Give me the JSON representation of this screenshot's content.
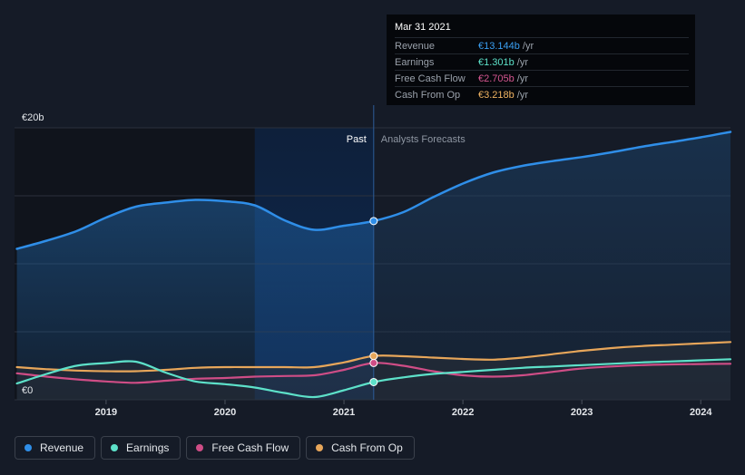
{
  "chart_data": {
    "type": "line",
    "currency_unit": "€",
    "y_axis_labels": [
      "€0",
      "€20b"
    ],
    "ylim": [
      0,
      20
    ],
    "x_ticks": [
      "2019",
      "2020",
      "2021",
      "2022",
      "2023",
      "2024"
    ],
    "x_tick_values": [
      2019,
      2020,
      2021,
      2022,
      2023,
      2024
    ],
    "xlim": [
      2018.23,
      2024.25
    ],
    "past_label": "Past",
    "forecast_label": "Analysts Forecasts",
    "split_x": 2021.25,
    "highlight_range": [
      2020.25,
      2021.25
    ],
    "series": [
      {
        "name": "Revenue",
        "color": "#2f8ee8",
        "fill": true,
        "x": [
          2018.25,
          2018.5,
          2018.75,
          2019.0,
          2019.25,
          2019.5,
          2019.75,
          2020.0,
          2020.25,
          2020.5,
          2020.75,
          2021.0,
          2021.25,
          2021.5,
          2021.75,
          2022.0,
          2022.25,
          2022.5,
          2022.75,
          2023.0,
          2023.25,
          2023.5,
          2023.75,
          2024.0,
          2024.25
        ],
        "y": [
          11.1,
          11.7,
          12.4,
          13.4,
          14.2,
          14.5,
          14.7,
          14.6,
          14.3,
          13.2,
          12.5,
          12.8,
          13.144,
          13.8,
          14.9,
          15.9,
          16.7,
          17.2,
          17.55,
          17.85,
          18.2,
          18.6,
          18.95,
          19.3,
          19.7
        ]
      },
      {
        "name": "Earnings",
        "color": "#5de1c9",
        "x": [
          2018.25,
          2018.5,
          2018.75,
          2019.0,
          2019.25,
          2019.5,
          2019.75,
          2020.0,
          2020.25,
          2020.5,
          2020.75,
          2021.0,
          2021.25,
          2021.5,
          2021.75,
          2022.0,
          2022.25,
          2022.5,
          2022.75,
          2023.0,
          2023.25,
          2023.5,
          2023.75,
          2024.0,
          2024.25
        ],
        "y": [
          1.2,
          1.9,
          2.5,
          2.7,
          2.8,
          2.0,
          1.35,
          1.15,
          0.9,
          0.5,
          0.2,
          0.7,
          1.301,
          1.65,
          1.9,
          2.05,
          2.2,
          2.35,
          2.45,
          2.55,
          2.65,
          2.75,
          2.82,
          2.9,
          2.98
        ]
      },
      {
        "name": "Free Cash Flow",
        "color": "#cf4d86",
        "x": [
          2018.25,
          2018.5,
          2018.75,
          2019.0,
          2019.25,
          2019.5,
          2019.75,
          2020.0,
          2020.25,
          2020.5,
          2020.75,
          2021.0,
          2021.25,
          2021.5,
          2021.75,
          2022.0,
          2022.25,
          2022.5,
          2022.75,
          2023.0,
          2023.25,
          2023.5,
          2023.75,
          2024.0,
          2024.25
        ],
        "y": [
          1.95,
          1.7,
          1.5,
          1.35,
          1.25,
          1.4,
          1.55,
          1.6,
          1.7,
          1.75,
          1.8,
          2.2,
          2.705,
          2.5,
          2.1,
          1.8,
          1.7,
          1.8,
          2.05,
          2.3,
          2.45,
          2.55,
          2.6,
          2.63,
          2.65
        ]
      },
      {
        "name": "Cash From Op",
        "color": "#e7a65a",
        "x": [
          2018.25,
          2018.5,
          2018.75,
          2019.0,
          2019.25,
          2019.5,
          2019.75,
          2020.0,
          2020.25,
          2020.5,
          2020.75,
          2021.0,
          2021.25,
          2021.5,
          2021.75,
          2022.0,
          2022.25,
          2022.5,
          2022.75,
          2023.0,
          2023.25,
          2023.5,
          2023.75,
          2024.0,
          2024.25
        ],
        "y": [
          2.4,
          2.25,
          2.15,
          2.1,
          2.1,
          2.2,
          2.35,
          2.4,
          2.4,
          2.4,
          2.4,
          2.75,
          3.218,
          3.2,
          3.1,
          3.0,
          2.95,
          3.1,
          3.35,
          3.6,
          3.8,
          3.95,
          4.05,
          4.15,
          4.25
        ]
      }
    ]
  },
  "tooltip": {
    "date": "Mar 31 2021",
    "rows": [
      {
        "label": "Revenue",
        "value": "€13.144b",
        "unit": "/yr",
        "color": "#3a9ff2"
      },
      {
        "label": "Earnings",
        "value": "€1.301b",
        "unit": "/yr",
        "color": "#5de1c9"
      },
      {
        "label": "Free Cash Flow",
        "value": "€2.705b",
        "unit": "/yr",
        "color": "#d65690"
      },
      {
        "label": "Cash From Op",
        "value": "€3.218b",
        "unit": "/yr",
        "color": "#f0b361"
      }
    ]
  },
  "legend": [
    {
      "label": "Revenue",
      "color": "#2f8ee8"
    },
    {
      "label": "Earnings",
      "color": "#5de1c9"
    },
    {
      "label": "Free Cash Flow",
      "color": "#cf4d86"
    },
    {
      "label": "Cash From Op",
      "color": "#e7a65a"
    }
  ]
}
